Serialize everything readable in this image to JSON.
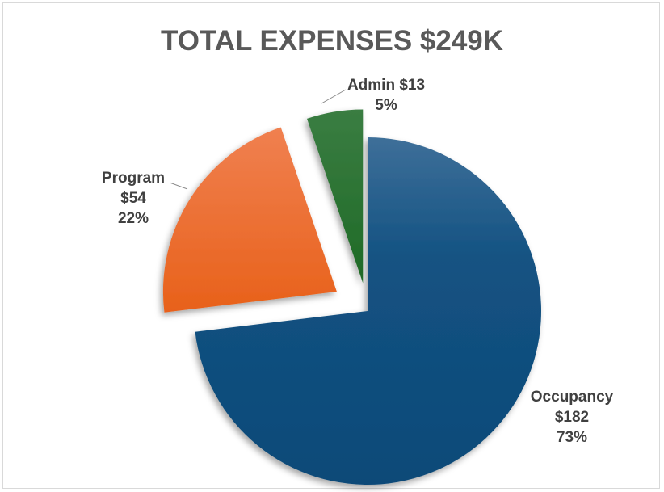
{
  "chart_data": {
    "type": "pie",
    "title": "TOTAL EXPENSES $249K",
    "slices": [
      {
        "name": "Occupancy",
        "value": 182,
        "value_label": "$182",
        "percent_label": "73%",
        "color": "#135282"
      },
      {
        "name": "Program",
        "value": 54,
        "value_label": "$54",
        "percent_label": "22%",
        "color": "#ec6a24"
      },
      {
        "name": "Admin",
        "value": 13,
        "value_label": "$13",
        "percent_label": "5%",
        "color": "#266b2e"
      }
    ],
    "exploded": true,
    "legend": "none"
  }
}
